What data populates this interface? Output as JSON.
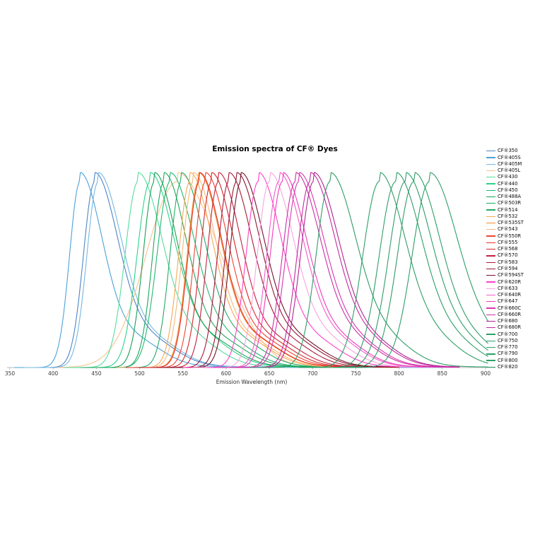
{
  "chart_data": {
    "type": "line",
    "title": "Emission spectra of CF® Dyes",
    "xlabel": "Emission Wavelength (nm)",
    "ylabel": "",
    "y_axis": {
      "normalized": true,
      "visible": false,
      "peak_value": 1.0
    },
    "x_axis": {
      "min": 350,
      "max": 905,
      "ticks": [
        350,
        400,
        450,
        500,
        550,
        600,
        650,
        700,
        750,
        800,
        850,
        900
      ]
    },
    "grid": false,
    "legend_position": "right",
    "background_color": "#ffffff",
    "axis_color": "#bbbbbb",
    "tick_label_color": "#3a3a3a",
    "series": [
      {
        "label": "CF®350",
        "color": "#4e84c4",
        "peak_nm": 448,
        "start_nm": 360,
        "end_nm": 850,
        "rise_sigma_nm": 13,
        "fall_sigma_nm": 27
      },
      {
        "label": "CF®405S",
        "color": "#4aa2d8",
        "peak_nm": 431,
        "start_nm": 355,
        "end_nm": 850,
        "rise_sigma_nm": 12,
        "fall_sigma_nm": 26
      },
      {
        "label": "CF®405M",
        "color": "#74b7e2",
        "peak_nm": 452,
        "start_nm": 367,
        "end_nm": 850,
        "rise_sigma_nm": 13,
        "fall_sigma_nm": 27
      },
      {
        "label": "CF®405L",
        "color": "#f8c390",
        "peak_nm": 543,
        "start_nm": 405,
        "end_nm": 800,
        "rise_sigma_nm": 36,
        "fall_sigma_nm": 42
      },
      {
        "label": "CF®430",
        "color": "#55dd9e",
        "peak_nm": 498,
        "start_nm": 413,
        "end_nm": 750,
        "rise_sigma_nm": 15,
        "fall_sigma_nm": 28
      },
      {
        "label": "CF®440",
        "color": "#2bd389",
        "peak_nm": 512,
        "start_nm": 427,
        "end_nm": 750,
        "rise_sigma_nm": 15,
        "fall_sigma_nm": 28
      },
      {
        "label": "CF®450",
        "color": "#25b871",
        "peak_nm": 535,
        "start_nm": 450,
        "end_nm": 750,
        "rise_sigma_nm": 15,
        "fall_sigma_nm": 28
      },
      {
        "label": "CF®488A",
        "color": "#17a054",
        "peak_nm": 517,
        "start_nm": 432,
        "end_nm": 750,
        "rise_sigma_nm": 13,
        "fall_sigma_nm": 26
      },
      {
        "label": "CF®503R",
        "color": "#1ea75e",
        "peak_nm": 528,
        "start_nm": 443,
        "end_nm": 750,
        "rise_sigma_nm": 13,
        "fall_sigma_nm": 26
      },
      {
        "label": "CF®514",
        "color": "#23ab66",
        "peak_nm": 548,
        "start_nm": 463,
        "end_nm": 750,
        "rise_sigma_nm": 13,
        "fall_sigma_nm": 27
      },
      {
        "label": "CF®532",
        "color": "#f5a952",
        "peak_nm": 558,
        "start_nm": 473,
        "end_nm": 800,
        "rise_sigma_nm": 13,
        "fall_sigma_nm": 26
      },
      {
        "label": "CF®535ST",
        "color": "#ef8b2d",
        "peak_nm": 568,
        "start_nm": 483,
        "end_nm": 800,
        "rise_sigma_nm": 13,
        "fall_sigma_nm": 26
      },
      {
        "label": "CF®543",
        "color": "#f6b87e",
        "peak_nm": 562,
        "start_nm": 477,
        "end_nm": 800,
        "rise_sigma_nm": 13,
        "fall_sigma_nm": 26
      },
      {
        "label": "CF®550R",
        "color": "#ee4433",
        "peak_nm": 576,
        "start_nm": 491,
        "end_nm": 800,
        "rise_sigma_nm": 13,
        "fall_sigma_nm": 26
      },
      {
        "label": "CF®555",
        "color": "#e63226",
        "peak_nm": 569,
        "start_nm": 484,
        "end_nm": 800,
        "rise_sigma_nm": 13,
        "fall_sigma_nm": 26
      },
      {
        "label": "CF®568",
        "color": "#d8252b",
        "peak_nm": 583,
        "start_nm": 498,
        "end_nm": 800,
        "rise_sigma_nm": 13,
        "fall_sigma_nm": 26
      },
      {
        "label": "CF®570",
        "color": "#c51f3c",
        "peak_nm": 591,
        "start_nm": 506,
        "end_nm": 800,
        "rise_sigma_nm": 13,
        "fall_sigma_nm": 26
      },
      {
        "label": "CF®583",
        "color": "#a81a38",
        "peak_nm": 603,
        "start_nm": 518,
        "end_nm": 800,
        "rise_sigma_nm": 13,
        "fall_sigma_nm": 27
      },
      {
        "label": "CF®594",
        "color": "#921731",
        "peak_nm": 612,
        "start_nm": 527,
        "end_nm": 800,
        "rise_sigma_nm": 13,
        "fall_sigma_nm": 27
      },
      {
        "label": "CF®594ST",
        "color": "#76122a",
        "peak_nm": 617,
        "start_nm": 532,
        "end_nm": 800,
        "rise_sigma_nm": 13,
        "fall_sigma_nm": 27
      },
      {
        "label": "CF®620R",
        "color": "#ff40c8",
        "peak_nm": 637,
        "start_nm": 550,
        "end_nm": 870,
        "rise_sigma_nm": 14,
        "fall_sigma_nm": 27
      },
      {
        "label": "CF®633",
        "color": "#f9a4e0",
        "peak_nm": 650,
        "start_nm": 563,
        "end_nm": 870,
        "rise_sigma_nm": 14,
        "fall_sigma_nm": 28
      },
      {
        "label": "CF®640R",
        "color": "#f25cc8",
        "peak_nm": 661,
        "start_nm": 574,
        "end_nm": 870,
        "rise_sigma_nm": 14,
        "fall_sigma_nm": 28
      },
      {
        "label": "CF®647",
        "color": "#ee3cbc",
        "peak_nm": 665,
        "start_nm": 578,
        "end_nm": 870,
        "rise_sigma_nm": 14,
        "fall_sigma_nm": 28
      },
      {
        "label": "CF®660C",
        "color": "#da36ae",
        "peak_nm": 684,
        "start_nm": 595,
        "end_nm": 870,
        "rise_sigma_nm": 15,
        "fall_sigma_nm": 29
      },
      {
        "label": "CF®660R",
        "color": "#cc2fa4",
        "peak_nm": 680,
        "start_nm": 591,
        "end_nm": 870,
        "rise_sigma_nm": 15,
        "fall_sigma_nm": 29
      },
      {
        "label": "CF®680",
        "color": "#b02492",
        "peak_nm": 701,
        "start_nm": 612,
        "end_nm": 870,
        "rise_sigma_nm": 15,
        "fall_sigma_nm": 29
      },
      {
        "label": "CF®680R",
        "color": "#c22a9e",
        "peak_nm": 697,
        "start_nm": 608,
        "end_nm": 870,
        "rise_sigma_nm": 15,
        "fall_sigma_nm": 29
      },
      {
        "label": "CF®700",
        "color": "#2e9e68",
        "peak_nm": 720,
        "start_nm": 627,
        "end_nm": 903,
        "rise_sigma_nm": 16,
        "fall_sigma_nm": 30
      },
      {
        "label": "CF®750",
        "color": "#2e9e68",
        "peak_nm": 777,
        "start_nm": 684,
        "end_nm": 903,
        "rise_sigma_nm": 19,
        "fall_sigma_nm": 30
      },
      {
        "label": "CF®770",
        "color": "#2e9e68",
        "peak_nm": 796,
        "start_nm": 703,
        "end_nm": 903,
        "rise_sigma_nm": 19,
        "fall_sigma_nm": 30
      },
      {
        "label": "CF®790",
        "color": "#2e9e68",
        "peak_nm": 807,
        "start_nm": 714,
        "end_nm": 903,
        "rise_sigma_nm": 19,
        "fall_sigma_nm": 30
      },
      {
        "label": "CF®800",
        "color": "#2e9e68",
        "peak_nm": 817,
        "start_nm": 724,
        "end_nm": 903,
        "rise_sigma_nm": 19,
        "fall_sigma_nm": 30
      },
      {
        "label": "CF®820",
        "color": "#2e9e68",
        "peak_nm": 835,
        "start_nm": 740,
        "end_nm": 903,
        "rise_sigma_nm": 20,
        "fall_sigma_nm": 32
      }
    ]
  }
}
